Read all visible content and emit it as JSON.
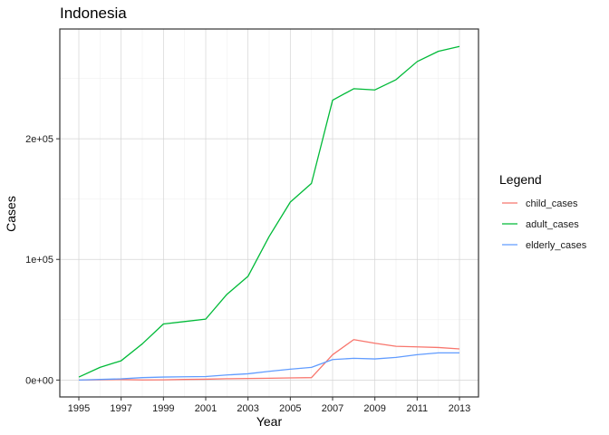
{
  "chart_data": {
    "type": "line",
    "title": "Indonesia",
    "xlabel": "Year",
    "ylabel": "Cases",
    "x": [
      1995,
      1996,
      1997,
      1998,
      1999,
      2000,
      2001,
      2002,
      2003,
      2004,
      2005,
      2006,
      2007,
      2008,
      2009,
      2010,
      2011,
      2012,
      2013
    ],
    "xlim": [
      1994.1,
      2013.9
    ],
    "ylim": [
      -14000,
      291000
    ],
    "x_ticks": [
      1995,
      1997,
      1999,
      2001,
      2003,
      2005,
      2007,
      2009,
      2011,
      2013
    ],
    "x_tick_labels": [
      "1995",
      "1997",
      "1999",
      "2001",
      "2003",
      "2005",
      "2007",
      "2009",
      "2011",
      "2013"
    ],
    "y_ticks": [
      0,
      100000,
      200000
    ],
    "y_tick_labels": [
      "0e+00",
      "1e+05",
      "2e+05"
    ],
    "grid": true,
    "legend": {
      "title": "Legend",
      "position": "right"
    },
    "series": [
      {
        "name": "child_cases",
        "color": "#F8766D",
        "values": [
          0,
          200,
          400,
          100,
          200,
          500,
          700,
          1100,
          1300,
          1500,
          1800,
          2000,
          21000,
          33500,
          30500,
          28000,
          27500,
          27000,
          25800
        ]
      },
      {
        "name": "adult_cases",
        "color": "#00BA38",
        "values": [
          2500,
          10500,
          16000,
          30000,
          46500,
          48500,
          50500,
          71000,
          86000,
          119000,
          147500,
          163000,
          232000,
          241500,
          240500,
          249000,
          264000,
          272500,
          276500
        ]
      },
      {
        "name": "elderly_cases",
        "color": "#619CFF",
        "values": [
          0,
          500,
          1000,
          2000,
          2500,
          2700,
          2900,
          4200,
          5200,
          7200,
          9000,
          10500,
          17000,
          18000,
          17500,
          18800,
          21000,
          22500,
          22500
        ]
      }
    ]
  }
}
